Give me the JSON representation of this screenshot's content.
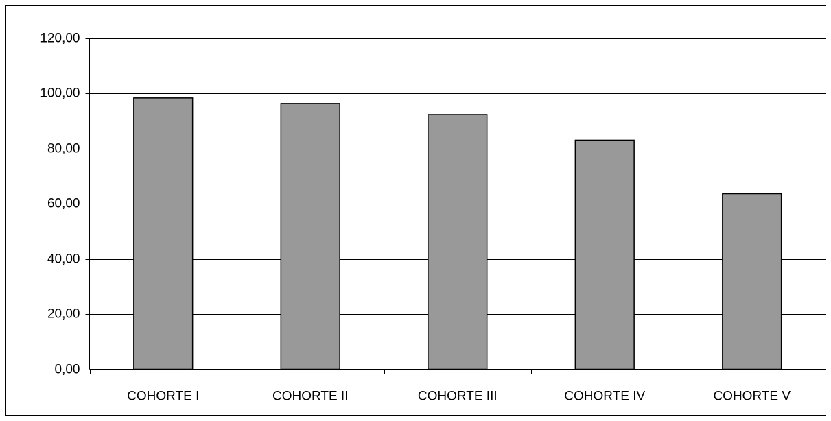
{
  "chart_data": {
    "type": "bar",
    "categories": [
      "COHORTE I",
      "COHORTE II",
      "COHORTE III",
      "COHORTE IV",
      "COHORTE V"
    ],
    "values": [
      98.3,
      96.3,
      92.3,
      83.0,
      63.6
    ],
    "color": "#999999",
    "ylim": [
      0,
      120
    ],
    "yticks": [
      {
        "value": 0,
        "label": "0,00"
      },
      {
        "value": 20,
        "label": "20,00"
      },
      {
        "value": 40,
        "label": "40,00"
      },
      {
        "value": 60,
        "label": "60,00"
      },
      {
        "value": 80,
        "label": "80,00"
      },
      {
        "value": 100,
        "label": "100,00"
      },
      {
        "value": 120,
        "label": "120,00"
      }
    ],
    "grid": true
  }
}
